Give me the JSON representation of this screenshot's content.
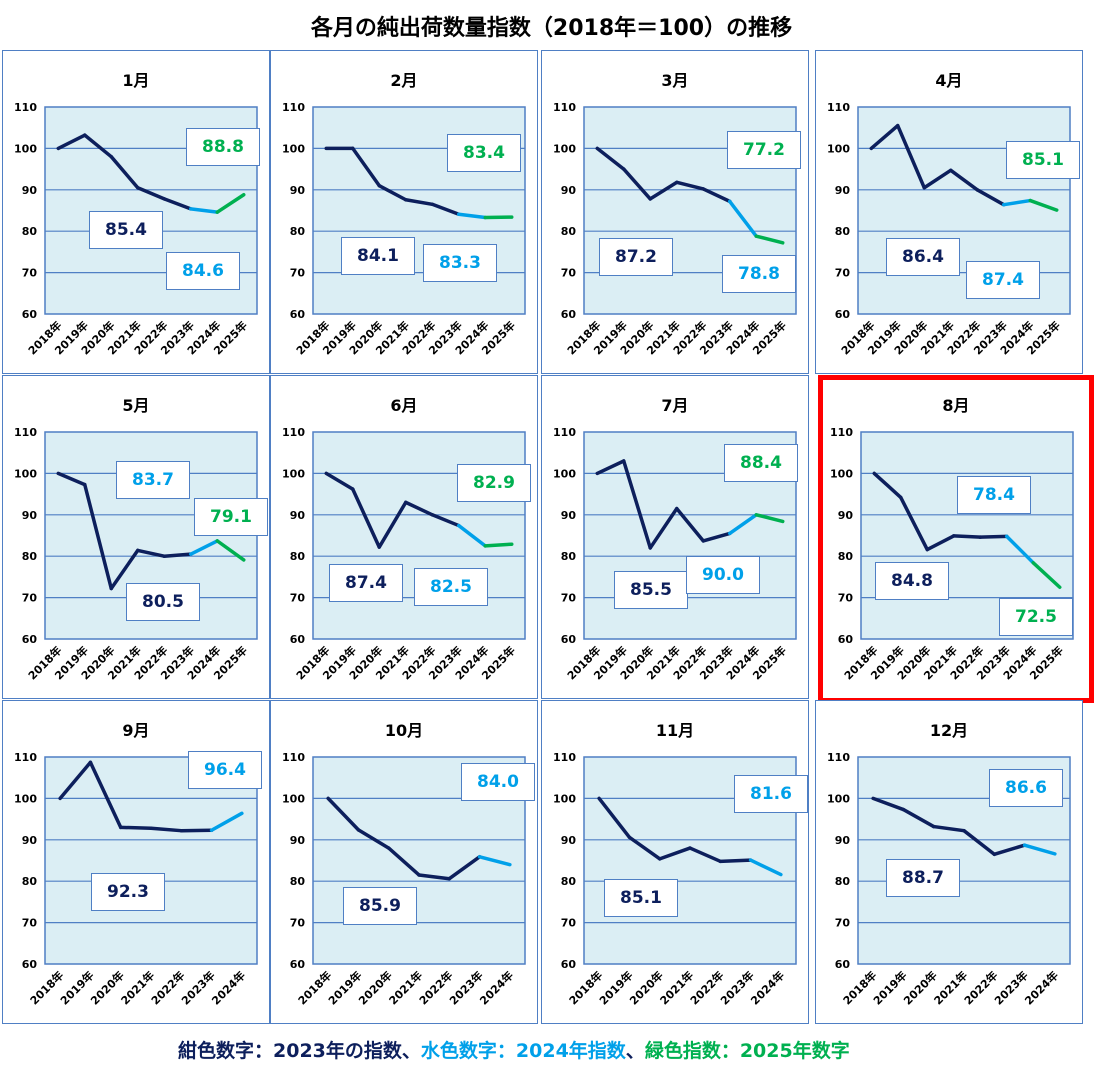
{
  "title": "各月の純出荷数量指数（2018年＝100）の推移",
  "colors": {
    "y2023": "#0d1f5c",
    "y2024": "#00a0e9",
    "y2025": "#00b050",
    "plot_bg": "#dbeef4",
    "grid": "#4f7fc4",
    "highlight": "#ff0000"
  },
  "legend": {
    "navy": "紺色数字：2023年の指数",
    "sep1": "、",
    "cyan": "水色数字：2024年指数",
    "sep2": "、",
    "green": "緑色指数：2025年数字"
  },
  "chart_data": [
    {
      "type": "line",
      "title": "1月",
      "x": [
        "2018年",
        "2019年",
        "2020年",
        "2021年",
        "2022年",
        "2023年",
        "2024年",
        "2025年"
      ],
      "values": [
        100,
        103.2,
        98,
        90.5,
        87.8,
        85.4,
        84.6,
        88.8
      ],
      "labels": {
        "y2023": "85.4",
        "y2024": "84.6",
        "y2025": "88.8"
      },
      "ylim": [
        60,
        110
      ],
      "yticks": [
        "60",
        "70",
        "80",
        "90",
        "100",
        "110"
      ]
    },
    {
      "type": "line",
      "title": "2月",
      "x": [
        "2018年",
        "2019年",
        "2020年",
        "2021年",
        "2022年",
        "2023年",
        "2024年",
        "2025年"
      ],
      "values": [
        100,
        100,
        91,
        87.6,
        86.5,
        84.1,
        83.3,
        83.4
      ],
      "labels": {
        "y2023": "84.1",
        "y2024": "83.3",
        "y2025": "83.4"
      },
      "ylim": [
        60,
        110
      ],
      "yticks": [
        "60",
        "70",
        "80",
        "90",
        "100",
        "110"
      ]
    },
    {
      "type": "line",
      "title": "3月",
      "x": [
        "2018年",
        "2019年",
        "2020年",
        "2021年",
        "2022年",
        "2023年",
        "2024年",
        "2025年"
      ],
      "values": [
        100,
        95,
        87.8,
        91.8,
        90.2,
        87.2,
        78.8,
        77.2
      ],
      "labels": {
        "y2023": "87.2",
        "y2024": "78.8",
        "y2025": "77.2"
      },
      "ylim": [
        60,
        110
      ],
      "yticks": [
        "60",
        "70",
        "80",
        "90",
        "100",
        "110"
      ]
    },
    {
      "type": "line",
      "title": "4月",
      "x": [
        "2018年",
        "2019年",
        "2020年",
        "2021年",
        "2022年",
        "2023年",
        "2024年",
        "2025年"
      ],
      "values": [
        100,
        105.5,
        90.5,
        94.7,
        90,
        86.4,
        87.4,
        85.1
      ],
      "labels": {
        "y2023": "86.4",
        "y2024": "87.4",
        "y2025": "85.1"
      },
      "ylim": [
        60,
        110
      ],
      "yticks": [
        "60",
        "70",
        "80",
        "90",
        "100",
        "110"
      ]
    },
    {
      "type": "line",
      "title": "5月",
      "x": [
        "2018年",
        "2019年",
        "2020年",
        "2021年",
        "2022年",
        "2023年",
        "2024年",
        "2025年"
      ],
      "values": [
        100,
        97.3,
        72.2,
        81.4,
        80,
        80.5,
        83.7,
        79.1
      ],
      "labels": {
        "y2023": "80.5",
        "y2024": "83.7",
        "y2025": "79.1"
      },
      "ylim": [
        60,
        110
      ],
      "yticks": [
        "60",
        "70",
        "80",
        "90",
        "100",
        "110"
      ]
    },
    {
      "type": "line",
      "title": "6月",
      "x": [
        "2018年",
        "2019年",
        "2020年",
        "2021年",
        "2022年",
        "2023年",
        "2024年",
        "2025年"
      ],
      "values": [
        100,
        96.2,
        82.2,
        93,
        90,
        87.4,
        82.5,
        82.9
      ],
      "labels": {
        "y2023": "87.4",
        "y2024": "82.5",
        "y2025": "82.9"
      },
      "ylim": [
        60,
        110
      ],
      "yticks": [
        "60",
        "70",
        "80",
        "90",
        "100",
        "110"
      ]
    },
    {
      "type": "line",
      "title": "7月",
      "x": [
        "2018年",
        "2019年",
        "2020年",
        "2021年",
        "2022年",
        "2023年",
        "2024年",
        "2025年"
      ],
      "values": [
        100,
        103,
        82,
        91.5,
        83.7,
        85.5,
        90.0,
        88.4
      ],
      "labels": {
        "y2023": "85.5",
        "y2024": "90.0",
        "y2025": "88.4"
      },
      "ylim": [
        60,
        110
      ],
      "yticks": [
        "60",
        "70",
        "80",
        "90",
        "100",
        "110"
      ]
    },
    {
      "type": "line",
      "title": "8月",
      "highlighted": true,
      "x": [
        "2018年",
        "2019年",
        "2020年",
        "2021年",
        "2022年",
        "2023年",
        "2024年",
        "2025年"
      ],
      "values": [
        100,
        94.2,
        81.6,
        84.9,
        84.6,
        84.8,
        78.4,
        72.5
      ],
      "labels": {
        "y2023": "84.8",
        "y2024": "78.4",
        "y2025": "72.5"
      },
      "ylim": [
        60,
        110
      ],
      "yticks": [
        "60",
        "70",
        "80",
        "90",
        "100",
        "110"
      ]
    },
    {
      "type": "line",
      "title": "9月",
      "x": [
        "2018年",
        "2019年",
        "2020年",
        "2021年",
        "2022年",
        "2023年",
        "2024年"
      ],
      "values": [
        100,
        108.7,
        93,
        92.8,
        92.2,
        92.3,
        96.4
      ],
      "labels": {
        "y2023": "92.3",
        "y2024": "96.4"
      },
      "ylim": [
        60,
        110
      ],
      "yticks": [
        "60",
        "70",
        "80",
        "90",
        "100",
        "110"
      ]
    },
    {
      "type": "line",
      "title": "10月",
      "x": [
        "2018年",
        "2019年",
        "2020年",
        "2021年",
        "2022年",
        "2023年",
        "2024年"
      ],
      "values": [
        100,
        92.4,
        88,
        81.5,
        80.6,
        85.9,
        84.0
      ],
      "labels": {
        "y2023": "85.9",
        "y2024": "84.0"
      },
      "ylim": [
        60,
        110
      ],
      "yticks": [
        "60",
        "70",
        "80",
        "90",
        "100",
        "110"
      ]
    },
    {
      "type": "line",
      "title": "11月",
      "x": [
        "2018年",
        "2019年",
        "2020年",
        "2021年",
        "2022年",
        "2023年",
        "2024年"
      ],
      "values": [
        100,
        90.6,
        85.4,
        88,
        84.8,
        85.1,
        81.6
      ],
      "labels": {
        "y2023": "85.1",
        "y2024": "81.6"
      },
      "ylim": [
        60,
        110
      ],
      "yticks": [
        "60",
        "70",
        "80",
        "90",
        "100",
        "110"
      ]
    },
    {
      "type": "line",
      "title": "12月",
      "x": [
        "2018年",
        "2019年",
        "2020年",
        "2021年",
        "2022年",
        "2023年",
        "2024年"
      ],
      "values": [
        100,
        97.3,
        93.2,
        92.2,
        86.5,
        88.7,
        86.6
      ],
      "labels": {
        "y2023": "88.7",
        "y2024": "86.6"
      },
      "ylim": [
        60,
        110
      ],
      "yticks": [
        "60",
        "70",
        "80",
        "90",
        "100",
        "110"
      ]
    }
  ]
}
